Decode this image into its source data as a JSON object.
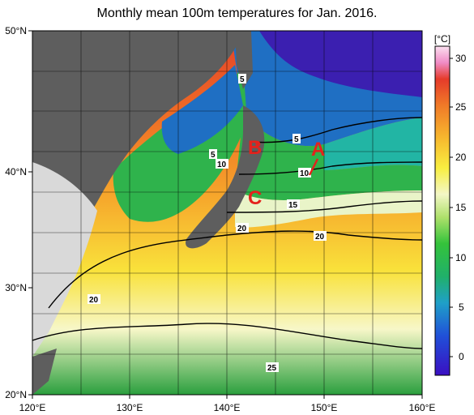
{
  "title": "Monthly mean 100m temperatures for Jan. 2016.",
  "lon_ticks": [
    "120°E",
    "130°E",
    "140°E",
    "150°E",
    "160°E"
  ],
  "lat_ticks": [
    "50°N",
    "40°N",
    "30°N",
    "20°N"
  ],
  "colorbar": {
    "unit": "[°C]",
    "ticks": [
      "30",
      "25",
      "20",
      "15",
      "10",
      "5",
      "0"
    ]
  },
  "contour_labels": [
    "5",
    "5",
    "5",
    "10",
    "10",
    "15",
    "20",
    "20",
    "20",
    "25"
  ],
  "markers": [
    "A",
    "B",
    "C"
  ],
  "colors": {
    "land": "#5e5e5e",
    "china_land": "#d9d9d9",
    "deep_warm": "#e8452a",
    "warm": "#f7a22c",
    "mid_warm": "#f8dd32",
    "cool": "#2fb34c",
    "cold": "#1f6fc3",
    "coldest": "#3b1fb0",
    "marker": "#e4221c"
  }
}
